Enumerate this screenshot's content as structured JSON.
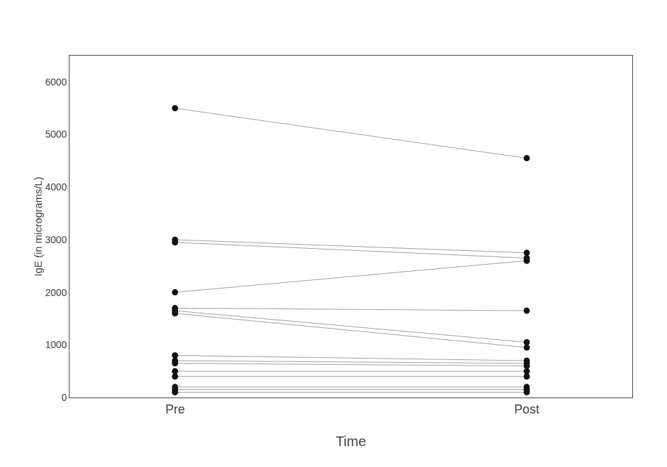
{
  "chart_data": {
    "type": "line",
    "xlabel": "Time",
    "ylabel": "IgE (in micrograms/L)",
    "categories": [
      "Pre",
      "Post"
    ],
    "series": [
      {
        "values": [
          5500,
          4550
        ]
      },
      {
        "values": [
          3000,
          2750
        ]
      },
      {
        "values": [
          2950,
          2650
        ]
      },
      {
        "values": [
          2000,
          2600
        ]
      },
      {
        "values": [
          1700,
          1650
        ]
      },
      {
        "values": [
          1650,
          1050
        ]
      },
      {
        "values": [
          1600,
          950
        ]
      },
      {
        "values": [
          800,
          700
        ]
      },
      {
        "values": [
          700,
          650
        ]
      },
      {
        "values": [
          650,
          600
        ]
      },
      {
        "values": [
          500,
          500
        ]
      },
      {
        "values": [
          400,
          400
        ]
      },
      {
        "values": [
          200,
          200
        ]
      },
      {
        "values": [
          150,
          150
        ]
      },
      {
        "values": [
          100,
          100
        ]
      }
    ],
    "color": "#111111",
    "marker": "circle",
    "ylim": [
      0,
      6500
    ],
    "yticks": [
      0,
      1000,
      2000,
      3000,
      4000,
      5000,
      6000
    ],
    "grid": false
  }
}
